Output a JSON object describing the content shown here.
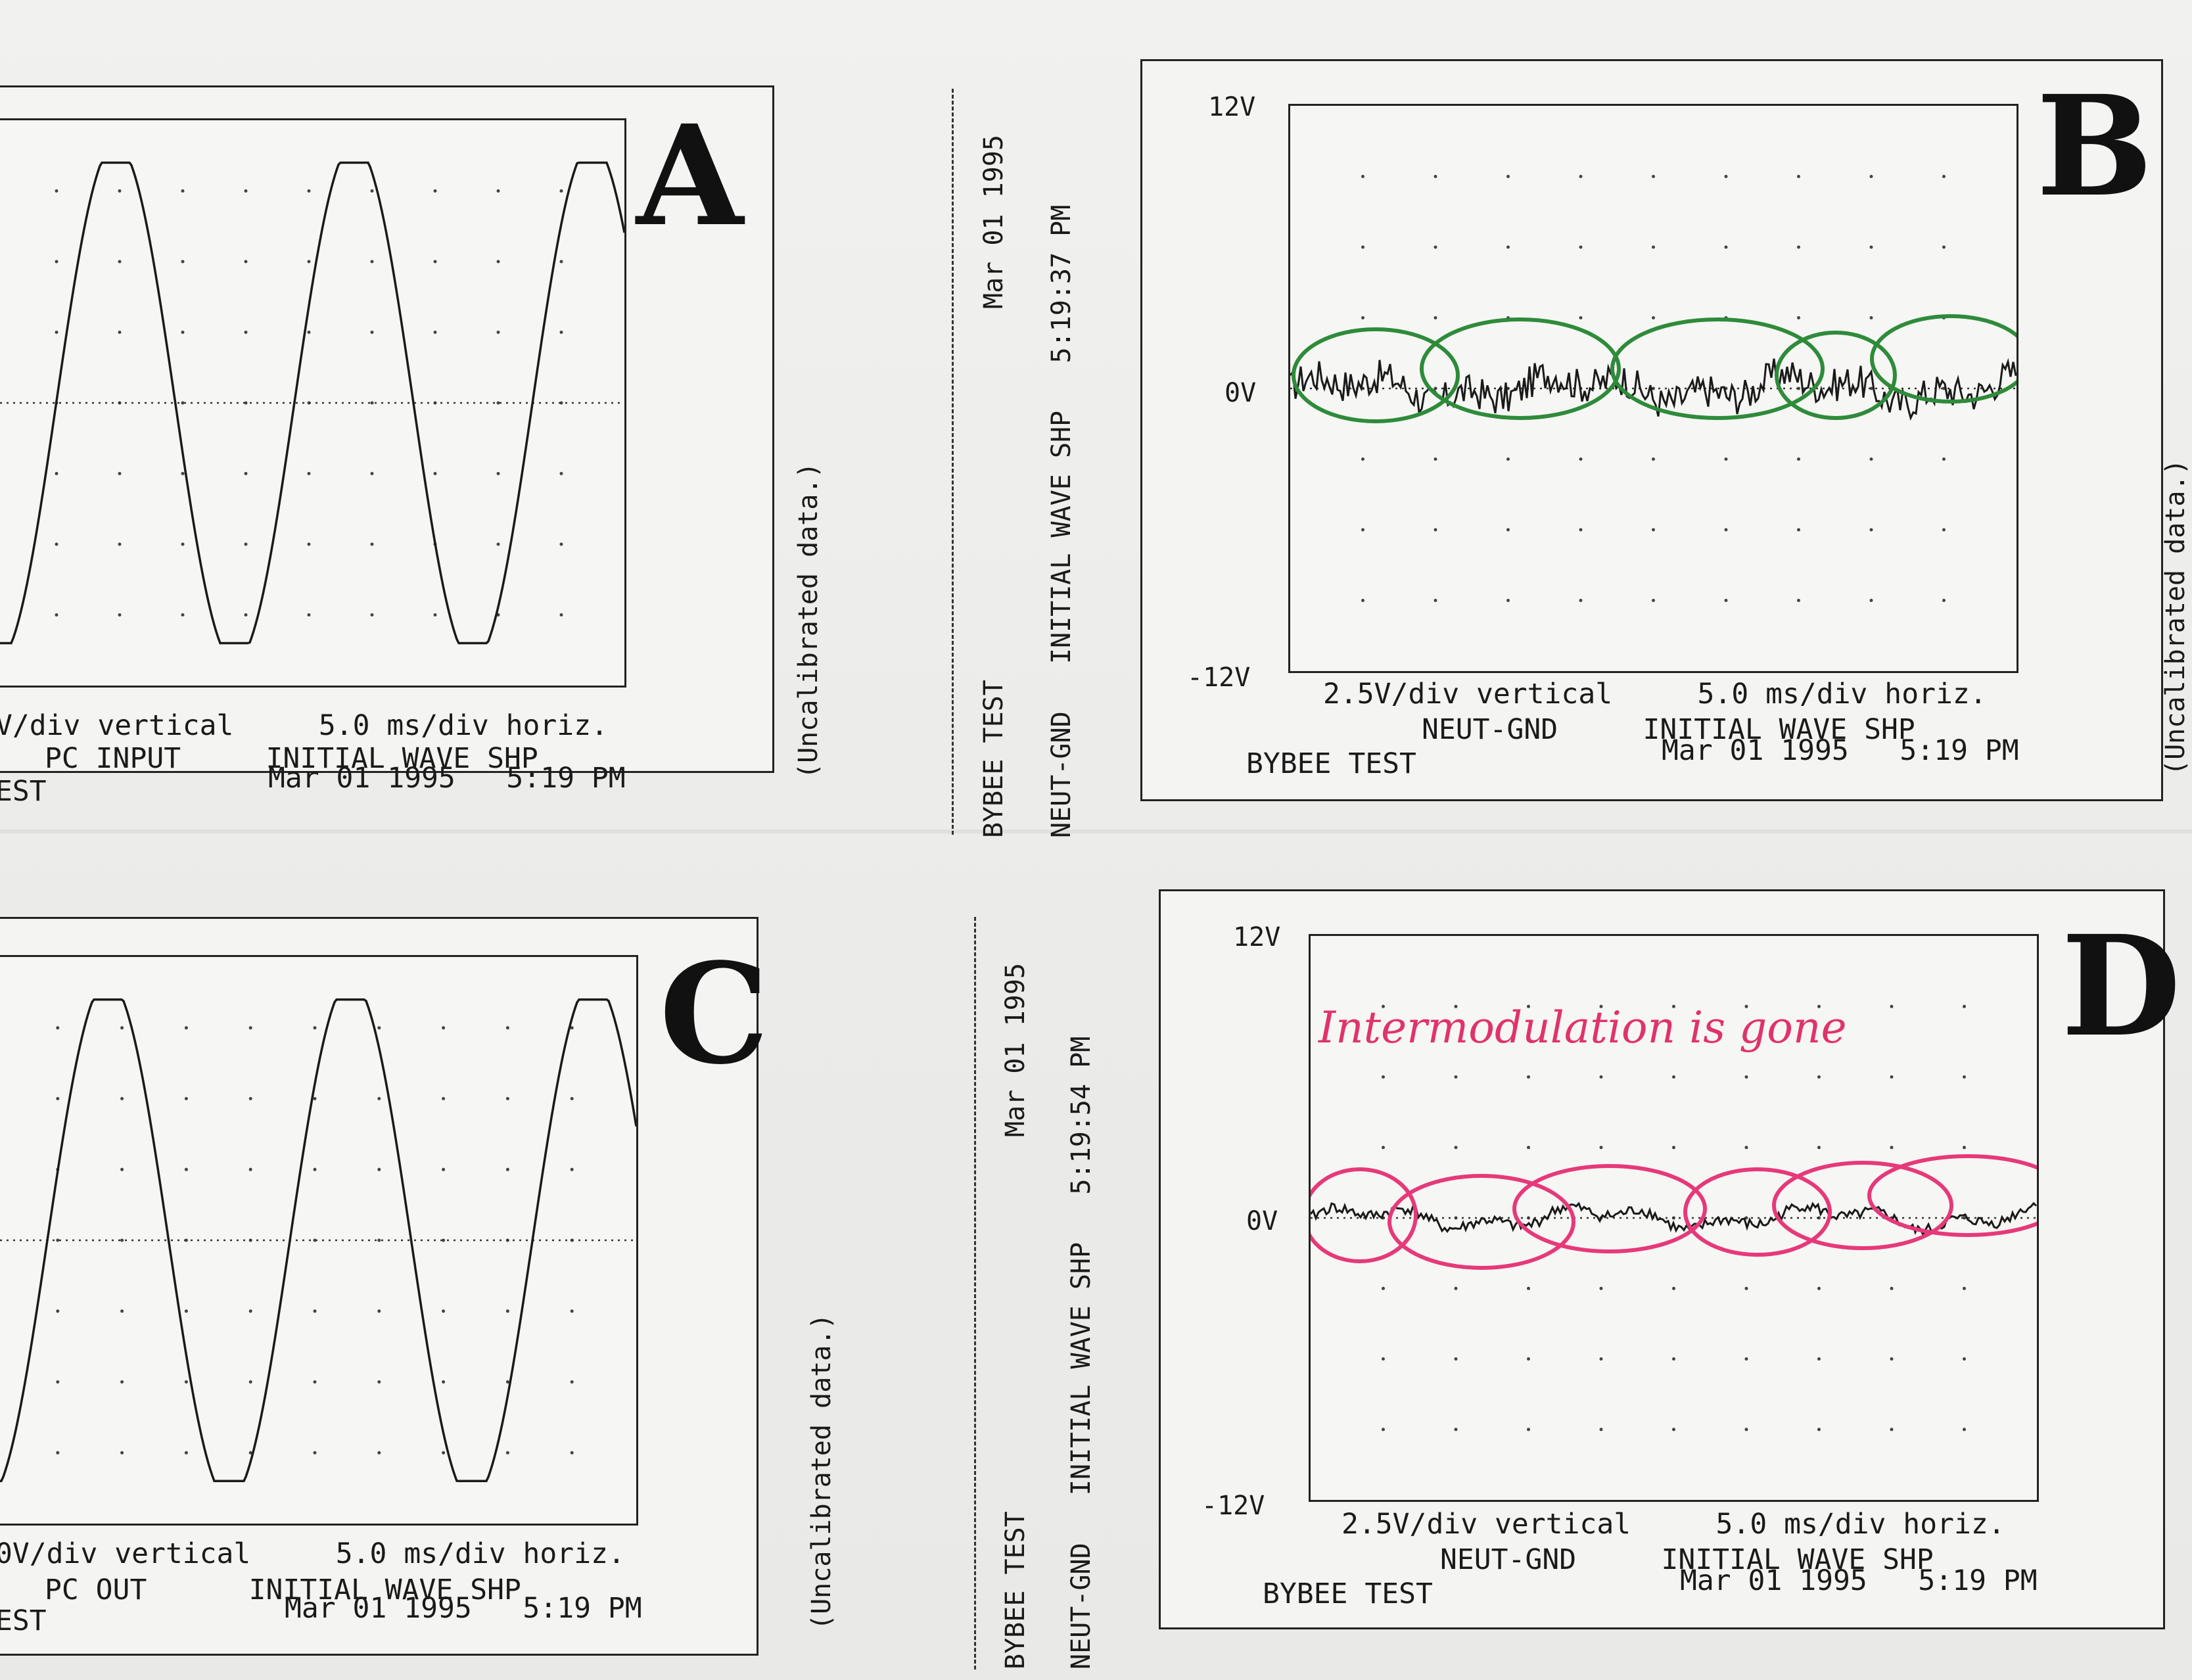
{
  "panels": {
    "A": {
      "letter": "A",
      "line1": "V/div vertical     5.0 ms/div horiz.",
      "line2": "PC INPUT     INITIAL WAVE SHP",
      "line3": "EST",
      "line4": "Mar 01 1995   5:19 PM"
    },
    "B": {
      "letter": "B",
      "y_top": "12V",
      "y_mid": "0V",
      "y_bot": "-12V",
      "line1": "2.5V/div vertical     5.0 ms/div horiz.",
      "line2": "NEUT-GND     INITIAL WAVE SHP",
      "line3": "BYBEE TEST",
      "line4": "Mar 01 1995   5:19 PM"
    },
    "C": {
      "letter": "C",
      "line1": "0V/div vertical     5.0 ms/div horiz.",
      "line2": "PC OUT      INITIAL WAVE SHP",
      "line3": "EST",
      "line4": "Mar 01 1995   5:19 PM"
    },
    "D": {
      "letter": "D",
      "y_top": "12V",
      "y_mid": "0V",
      "y_bot": "-12V",
      "line1": "2.5V/div vertical     5.0 ms/div horiz.",
      "line2": "NEUT-GND     INITIAL WAVE SHP",
      "line3": "BYBEE TEST",
      "line4": "Mar 01 1995   5:19 PM",
      "annotation": "Intermodulation is gone"
    }
  },
  "margin": {
    "uncal": "(Uncalibrated data.)",
    "top_strip": {
      "a": "BYBEE TEST",
      "b": "Mar 01 1995",
      "c": "NEUT-GND   INITIAL WAVE SHP   5:19:37 PM"
    },
    "bottom_strip": {
      "a": "BYBEE TEST",
      "b": "Mar 01 1995",
      "c": "NEUT-GND   INITIAL WAVE SHP   5:19:54 PM"
    }
  },
  "colors": {
    "trace": "#1a1a1a",
    "green_marks": "#2e8b3a",
    "pink_marks": "#e6397a"
  },
  "chart_data": [
    {
      "id": "A",
      "type": "line",
      "series": [
        {
          "kind": "sine",
          "amplitude": 0.85,
          "cycles_per_plot": 2.65,
          "phase_deg": -95
        }
      ],
      "xlabel": "5.0 ms/div horiz.",
      "ylabel": "V/div vertical",
      "grid": true
    },
    {
      "id": "B",
      "type": "line",
      "ylim": [
        -12,
        12
      ],
      "yticks": [
        "12V",
        "0V",
        "-12V"
      ],
      "series": [
        {
          "kind": "noise",
          "level": 0.05
        }
      ],
      "xlabel": "5.0 ms/div horiz.",
      "ylabel": "2.5V/div vertical",
      "grid": true
    },
    {
      "id": "C",
      "type": "line",
      "series": [
        {
          "kind": "sine",
          "amplitude": 0.85,
          "cycles_per_plot": 2.65,
          "phase_deg": -80
        }
      ],
      "xlabel": "5.0 ms/div horiz.",
      "ylabel": "0V/div vertical",
      "grid": true
    },
    {
      "id": "D",
      "type": "line",
      "ylim": [
        -12,
        12
      ],
      "yticks": [
        "12V",
        "0V",
        "-12V"
      ],
      "series": [
        {
          "kind": "smooth",
          "level": 0.04
        }
      ],
      "xlabel": "5.0 ms/div horiz.",
      "ylabel": "2.5V/div vertical",
      "grid": true
    }
  ]
}
